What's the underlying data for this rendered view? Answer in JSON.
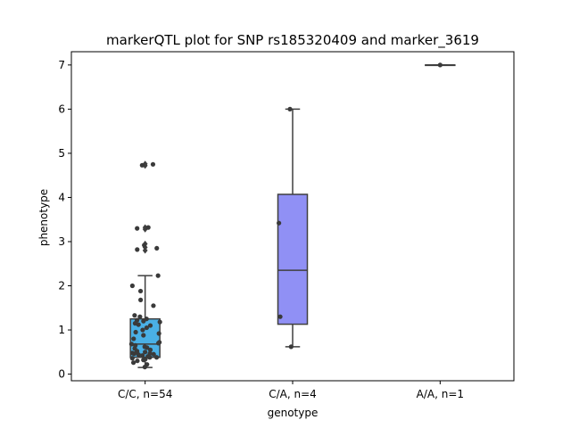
{
  "chart_data": {
    "type": "box",
    "title": "markerQTL plot for SNP rs185320409 and marker_3619",
    "xlabel": "genotype",
    "ylabel": "phenotype",
    "ylim": [
      -0.15,
      7.3
    ],
    "yticks": [
      0,
      1,
      2,
      3,
      4,
      5,
      6,
      7
    ],
    "categories": [
      "C/C, n=54",
      "C/A, n=4",
      "A/A, n=1"
    ],
    "grid": false,
    "series": [
      {
        "color": "#4ab0e6",
        "box": {
          "q1": 0.38,
          "median": 0.68,
          "q3": 1.25,
          "whisker_low": 0.15,
          "whisker_high": 2.23
        },
        "outliers": [
          2.8,
          2.87,
          2.95,
          3.28,
          3.32,
          4.72,
          4.76
        ],
        "points": [
          0.16,
          0.22,
          0.26,
          0.3,
          0.32,
          0.34,
          0.36,
          0.38,
          0.4,
          0.42,
          0.44,
          0.45,
          0.47,
          0.48,
          0.5,
          0.52,
          0.55,
          0.58,
          0.6,
          0.62,
          0.65,
          0.68,
          0.7,
          0.72,
          0.8,
          0.88,
          0.92,
          0.95,
          1.0,
          1.05,
          1.1,
          1.12,
          1.15,
          1.18,
          1.2,
          1.22,
          1.25,
          1.3,
          1.33,
          1.55,
          1.68,
          1.88,
          2.0,
          2.23,
          2.82,
          2.85,
          2.92,
          3.3,
          3.32,
          4.73,
          4.75,
          0.38,
          0.46,
          0.5
        ]
      },
      {
        "color": "#9090f5",
        "box": {
          "q1": 1.13,
          "median": 2.35,
          "q3": 4.07,
          "whisker_low": 0.62,
          "whisker_high": 6.0
        },
        "outliers": [],
        "points": [
          0.62,
          1.3,
          3.42,
          6.0
        ]
      },
      {
        "color": "#9090f5",
        "box": {
          "q1": 7.0,
          "median": 7.0,
          "q3": 7.0,
          "whisker_low": 7.0,
          "whisker_high": 7.0
        },
        "outliers": [],
        "points": [
          7.0
        ]
      }
    ]
  }
}
